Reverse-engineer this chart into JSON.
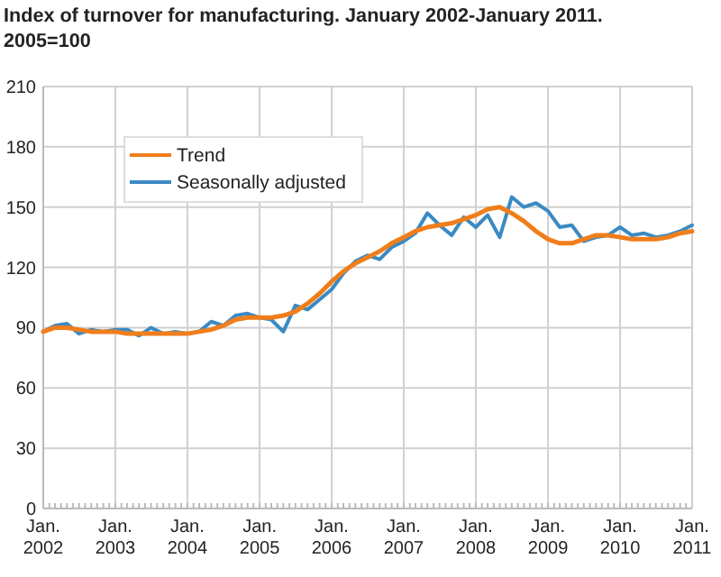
{
  "chart_data": {
    "type": "line",
    "title": "Index of turnover for manufacturing. January 2002-January 2011. 2005=100",
    "x": [
      "2002-01",
      "2002-03",
      "2002-05",
      "2002-07",
      "2002-09",
      "2002-11",
      "2003-01",
      "2003-03",
      "2003-05",
      "2003-07",
      "2003-09",
      "2003-11",
      "2004-01",
      "2004-03",
      "2004-05",
      "2004-07",
      "2004-09",
      "2004-11",
      "2005-01",
      "2005-03",
      "2005-05",
      "2005-07",
      "2005-09",
      "2005-11",
      "2006-01",
      "2006-03",
      "2006-05",
      "2006-07",
      "2006-09",
      "2006-11",
      "2007-01",
      "2007-03",
      "2007-05",
      "2007-07",
      "2007-09",
      "2007-11",
      "2008-01",
      "2008-03",
      "2008-05",
      "2008-07",
      "2008-09",
      "2008-11",
      "2009-01",
      "2009-03",
      "2009-05",
      "2009-07",
      "2009-09",
      "2009-11",
      "2010-01",
      "2010-03",
      "2010-05",
      "2010-07",
      "2010-09",
      "2010-11",
      "2011-01"
    ],
    "series": [
      {
        "name": "Trend",
        "color": "#f07e1b",
        "values": [
          88,
          90,
          90,
          89,
          88,
          88,
          88,
          87,
          87,
          87,
          87,
          87,
          87,
          88,
          89,
          91,
          94,
          95,
          95,
          95,
          96,
          98,
          102,
          107,
          113,
          118,
          122,
          125,
          128,
          132,
          135,
          138,
          140,
          141,
          142,
          144,
          146,
          149,
          150,
          147,
          143,
          138,
          134,
          132,
          132,
          134,
          136,
          136,
          135,
          134,
          134,
          134,
          135,
          137,
          138
        ]
      },
      {
        "name": "Seasonally adjusted",
        "color": "#3a8ac3",
        "values": [
          88,
          91,
          92,
          87,
          89,
          88,
          89,
          89,
          86,
          90,
          87,
          88,
          87,
          88,
          93,
          91,
          96,
          97,
          95,
          94,
          88,
          101,
          99,
          104,
          109,
          117,
          123,
          126,
          124,
          130,
          133,
          137,
          147,
          141,
          136,
          145,
          140,
          146,
          135,
          155,
          150,
          152,
          148,
          140,
          141,
          133,
          135,
          136,
          140,
          136,
          137,
          135,
          136,
          138,
          141
        ]
      }
    ],
    "xlim": [
      "2002-01",
      "2011-01"
    ],
    "xticks": [
      {
        "value": "2002-01",
        "label": "Jan. 2002"
      },
      {
        "value": "2003-01",
        "label": "Jan. 2003"
      },
      {
        "value": "2004-01",
        "label": "Jan. 2004"
      },
      {
        "value": "2005-01",
        "label": "Jan. 2005"
      },
      {
        "value": "2006-01",
        "label": "Jan. 2006"
      },
      {
        "value": "2007-01",
        "label": "Jan. 2007"
      },
      {
        "value": "2008-01",
        "label": "Jan. 2008"
      },
      {
        "value": "2009-01",
        "label": "Jan. 2009"
      },
      {
        "value": "2010-01",
        "label": "Jan. 2010"
      },
      {
        "value": "2011-01",
        "label": "Jan. 2011"
      }
    ],
    "ylim": [
      0,
      210
    ],
    "yticks": [
      0,
      30,
      60,
      90,
      120,
      150,
      180,
      210
    ],
    "grid": true,
    "legend": "top left"
  }
}
